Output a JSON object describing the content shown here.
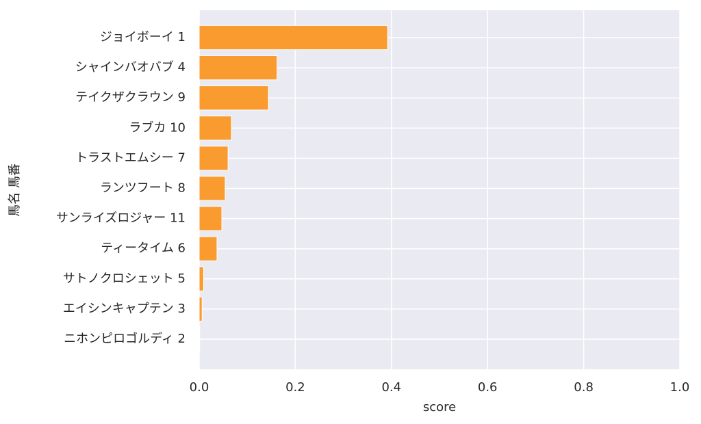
{
  "chart_data": {
    "type": "barh",
    "xlabel": "score",
    "ylabel": "馬名 馬番",
    "categories": [
      "ジョイボーイ 1",
      "シャインバオバブ 4",
      "テイクザクラウン 9",
      "ラブカ 10",
      "トラストエムシー 7",
      "ランツフート 8",
      "サンライズロジャー 11",
      "ティータイム 6",
      "サトノクロシェット 5",
      "エイシンキャプテン 3",
      "ニホンピロゴルディ 2"
    ],
    "values": [
      0.392,
      0.162,
      0.144,
      0.067,
      0.06,
      0.054,
      0.047,
      0.037,
      0.009,
      0.006,
      0.001
    ],
    "color": "#f99b2f",
    "xlim": [
      0,
      1
    ],
    "xticks": [
      {
        "value": 0,
        "label": "0.0"
      },
      0.2,
      0.4,
      0.6,
      0.8,
      {
        "value": 1,
        "label": "1.0"
      }
    ],
    "grid": true
  }
}
